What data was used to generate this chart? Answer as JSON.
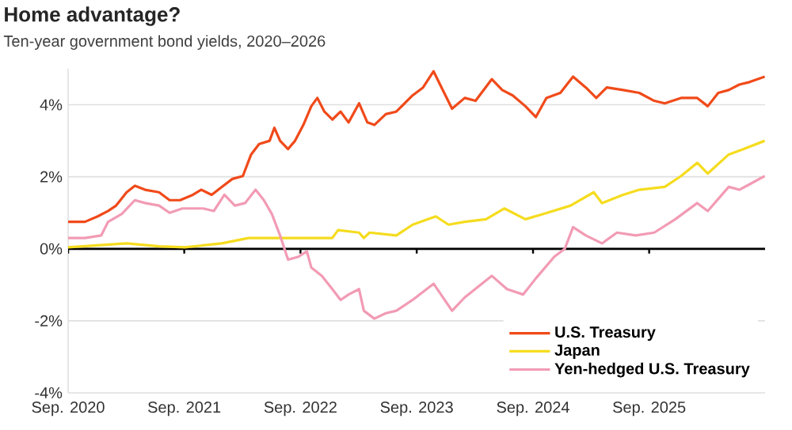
{
  "chart_data": {
    "type": "line",
    "title": "Home advantage?",
    "subtitle": "Ten-year government bond yields, 2020–2026",
    "xlim": [
      "2020-09-01",
      "2026-08-31"
    ],
    "ylim": [
      -4,
      5
    ],
    "xticks": [
      {
        "value": "2020-09-01",
        "label": "Sep. 2020"
      },
      {
        "value": "2021-09-01",
        "label": "Sep. 2021"
      },
      {
        "value": "2022-09-01",
        "label": "Sep. 2022"
      },
      {
        "value": "2023-09-01",
        "label": "Sep. 2023"
      },
      {
        "value": "2024-09-01",
        "label": "Sep. 2024"
      },
      {
        "value": "2025-09-01",
        "label": "Sep. 2025"
      }
    ],
    "yticks": [
      {
        "value": -4,
        "label": "-4%"
      },
      {
        "value": -2,
        "label": "-2%"
      },
      {
        "value": 0,
        "label": "0%"
      },
      {
        "value": 2,
        "label": "2%"
      },
      {
        "value": 4,
        "label": "4%"
      }
    ],
    "grid": "y",
    "legend": "bottom right",
    "marker": "none",
    "line_style": "solid",
    "ref_lines": [
      {
        "axis": "y",
        "value": 0,
        "color": "#000000"
      }
    ],
    "series": [
      {
        "name": "U.S. Treasury",
        "color": "#f04a1a",
        "x": [
          "2020-09-01",
          "2020-10-24",
          "2020-12-03",
          "2021-01-05",
          "2021-01-30",
          "2021-03-04",
          "2021-03-30",
          "2021-05-01",
          "2021-06-14",
          "2021-07-17",
          "2021-08-19",
          "2021-09-28",
          "2021-10-24",
          "2021-11-26",
          "2021-12-28",
          "2022-01-30",
          "2022-03-04",
          "2022-03-30",
          "2022-04-24",
          "2022-05-27",
          "2022-06-11",
          "2022-06-29",
          "2022-07-24",
          "2022-08-15",
          "2022-09-10",
          "2022-10-05",
          "2022-10-24",
          "2022-11-15",
          "2022-12-10",
          "2023-01-05",
          "2023-01-30",
          "2023-03-04",
          "2023-03-30",
          "2023-04-21",
          "2023-05-27",
          "2023-06-29",
          "2023-08-19",
          "2023-09-21",
          "2023-10-24",
          "2023-11-18",
          "2023-12-21",
          "2024-01-30",
          "2024-03-04",
          "2024-04-24",
          "2024-05-27",
          "2024-06-29",
          "2024-08-08",
          "2024-09-10",
          "2024-10-13",
          "2024-11-26",
          "2025-01-05",
          "2025-02-14",
          "2025-03-19",
          "2025-04-21",
          "2025-06-11",
          "2025-08-01",
          "2025-09-17",
          "2025-10-20",
          "2025-12-10",
          "2026-01-30",
          "2026-03-04",
          "2026-04-06",
          "2026-05-09",
          "2026-06-11",
          "2026-07-13",
          "2026-08-30"
        ],
        "values": [
          0.75,
          0.75,
          0.9,
          1.05,
          1.2,
          1.57,
          1.75,
          1.64,
          1.57,
          1.35,
          1.35,
          1.5,
          1.64,
          1.5,
          1.72,
          1.94,
          2.02,
          2.62,
          2.91,
          3.0,
          3.36,
          3.0,
          2.77,
          3.0,
          3.44,
          3.96,
          4.19,
          3.81,
          3.59,
          3.81,
          3.51,
          4.04,
          3.51,
          3.44,
          3.74,
          3.81,
          4.26,
          4.48,
          4.93,
          4.48,
          3.89,
          4.19,
          4.11,
          4.71,
          4.41,
          4.26,
          3.96,
          3.66,
          4.19,
          4.33,
          4.78,
          4.48,
          4.19,
          4.48,
          4.41,
          4.33,
          4.11,
          4.04,
          4.19,
          4.19,
          3.96,
          4.33,
          4.41,
          4.56,
          4.63,
          4.78
        ]
      },
      {
        "name": "Japan",
        "color": "#f5dc1e",
        "x": [
          "2020-09-01",
          "2021-03-04",
          "2021-06-14",
          "2021-09-03",
          "2021-12-28",
          "2022-03-22",
          "2022-07-13",
          "2022-09-21",
          "2022-12-10",
          "2022-12-28",
          "2023-03-04",
          "2023-03-19",
          "2023-04-06",
          "2023-06-29",
          "2023-08-19",
          "2023-10-31",
          "2023-12-10",
          "2024-01-30",
          "2024-04-06",
          "2024-06-03",
          "2024-08-08",
          "2024-10-05",
          "2024-12-28",
          "2025-03-11",
          "2025-04-06",
          "2025-06-11",
          "2025-08-01",
          "2025-10-20",
          "2025-12-10",
          "2026-01-30",
          "2026-03-04",
          "2026-05-09",
          "2026-06-25",
          "2026-08-30"
        ],
        "values": [
          0.04,
          0.15,
          0.07,
          0.04,
          0.15,
          0.3,
          0.3,
          0.3,
          0.3,
          0.52,
          0.45,
          0.3,
          0.45,
          0.37,
          0.67,
          0.9,
          0.67,
          0.75,
          0.82,
          1.12,
          0.82,
          0.97,
          1.2,
          1.57,
          1.27,
          1.5,
          1.64,
          1.72,
          2.02,
          2.39,
          2.09,
          2.62,
          2.77,
          3.0
        ]
      },
      {
        "name": "Yen-hedged U.S. Treasury",
        "color": "#f29bb4",
        "x": [
          "2020-09-01",
          "2020-10-24",
          "2020-12-14",
          "2021-01-05",
          "2021-02-17",
          "2021-03-30",
          "2021-05-01",
          "2021-06-14",
          "2021-07-17",
          "2021-08-26",
          "2021-09-28",
          "2021-10-31",
          "2021-12-03",
          "2022-01-05",
          "2022-02-07",
          "2022-03-11",
          "2022-04-13",
          "2022-05-09",
          "2022-06-03",
          "2022-06-29",
          "2022-07-24",
          "2022-08-26",
          "2022-09-21",
          "2022-10-05",
          "2022-11-07",
          "2022-12-10",
          "2023-01-05",
          "2023-01-30",
          "2023-03-04",
          "2023-03-19",
          "2023-04-21",
          "2023-05-27",
          "2023-06-29",
          "2023-08-19",
          "2023-10-24",
          "2023-12-21",
          "2024-01-30",
          "2024-04-24",
          "2024-06-11",
          "2024-08-01",
          "2024-09-10",
          "2024-11-07",
          "2024-12-10",
          "2025-01-05",
          "2025-02-14",
          "2025-04-06",
          "2025-05-23",
          "2025-07-21",
          "2025-09-17",
          "2025-11-22",
          "2026-01-30",
          "2026-03-04",
          "2026-05-09",
          "2026-06-11",
          "2026-07-13",
          "2026-08-30"
        ],
        "values": [
          0.3,
          0.3,
          0.37,
          0.75,
          0.97,
          1.35,
          1.27,
          1.2,
          1.0,
          1.12,
          1.12,
          1.12,
          1.05,
          1.5,
          1.2,
          1.27,
          1.64,
          1.35,
          0.97,
          0.37,
          -0.3,
          -0.22,
          -0.07,
          -0.52,
          -0.75,
          -1.12,
          -1.42,
          -1.27,
          -1.12,
          -1.72,
          -1.94,
          -1.79,
          -1.72,
          -1.42,
          -0.97,
          -1.72,
          -1.35,
          -0.75,
          -1.12,
          -1.27,
          -0.82,
          -0.22,
          0.0,
          0.6,
          0.37,
          0.15,
          0.45,
          0.37,
          0.45,
          0.82,
          1.27,
          1.05,
          1.72,
          1.64,
          1.79,
          2.02
        ]
      }
    ]
  }
}
